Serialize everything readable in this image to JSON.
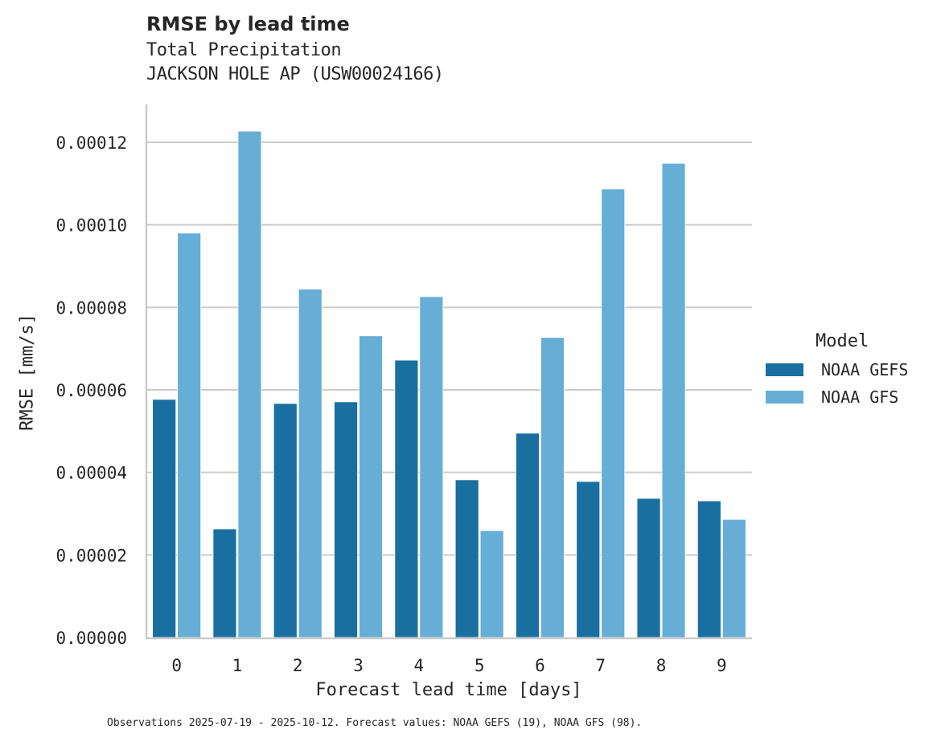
{
  "header": {
    "title": "RMSE by lead time",
    "subtitle1": "Total Precipitation",
    "subtitle2": "JACKSON HOLE AP (USW00024166)"
  },
  "axes": {
    "xlabel": "Forecast lead time [days]",
    "ylabel": "RMSE [mm/s]",
    "yticks": [
      "0.00000",
      "0.00002",
      "0.00004",
      "0.00006",
      "0.00008",
      "0.00010",
      "0.00012"
    ]
  },
  "legend": {
    "title": "Model",
    "items": [
      {
        "label": "NOAA GEFS",
        "color": "#186fa0"
      },
      {
        "label": "NOAA GFS",
        "color": "#67aed7"
      }
    ]
  },
  "footnote": "Observations 2025-07-19 - 2025-10-12. Forecast values: NOAA GEFS (19), NOAA GFS (98).",
  "chart_data": {
    "type": "bar",
    "title": "RMSE by lead time",
    "subtitle": "Total Precipitation / JACKSON HOLE AP (USW00024166)",
    "xlabel": "Forecast lead time [days]",
    "ylabel": "RMSE [mm/s]",
    "categories": [
      "0",
      "1",
      "2",
      "3",
      "4",
      "5",
      "6",
      "7",
      "8",
      "9"
    ],
    "series": [
      {
        "name": "NOAA GEFS",
        "color": "#186fa0",
        "values": [
          5.77e-05,
          2.63e-05,
          5.67e-05,
          5.71e-05,
          6.72e-05,
          3.82e-05,
          4.95e-05,
          3.78e-05,
          3.37e-05,
          3.31e-05
        ]
      },
      {
        "name": "NOAA GFS",
        "color": "#67aed7",
        "values": [
          9.8e-05,
          0.0001227,
          8.44e-05,
          7.31e-05,
          8.26e-05,
          2.59e-05,
          7.27e-05,
          0.0001087,
          0.0001149,
          2.86e-05
        ]
      }
    ],
    "ylim": [
      0,
      0.00013
    ],
    "yticks": [
      0,
      2e-05,
      4e-05,
      6e-05,
      8e-05,
      0.0001,
      0.00012
    ],
    "grid": "horizontal",
    "legend_position": "right",
    "legend_title": "Model"
  }
}
